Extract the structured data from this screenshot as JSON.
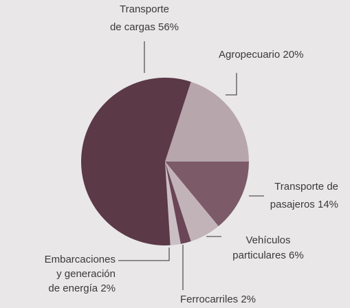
{
  "chart_data": {
    "type": "pie",
    "categories": [
      "Agropecuario",
      "Transporte de pasajeros",
      "Vehículos particulares",
      "Ferrocarriles",
      "Embarcaciones y generación de energía",
      "Transporte de cargas"
    ],
    "values": [
      20,
      14,
      6,
      2,
      2,
      56
    ],
    "labels": [
      [
        "Agropecuario 20%"
      ],
      [
        "Transporte de",
        "pasajeros 14%"
      ],
      [
        "Vehículos",
        "particulares 6%"
      ],
      [
        "Ferrocarriles 2%"
      ],
      [
        "Embarcaciones",
        "y generación",
        "de energía 2%"
      ],
      [
        "Transporte",
        "de cargas 56%"
      ]
    ],
    "colors": [
      "#b8a6ad",
      "#7c5a68",
      "#c2b3b9",
      "#6a4555",
      "#cbbfc4",
      "#5b3947"
    ]
  }
}
